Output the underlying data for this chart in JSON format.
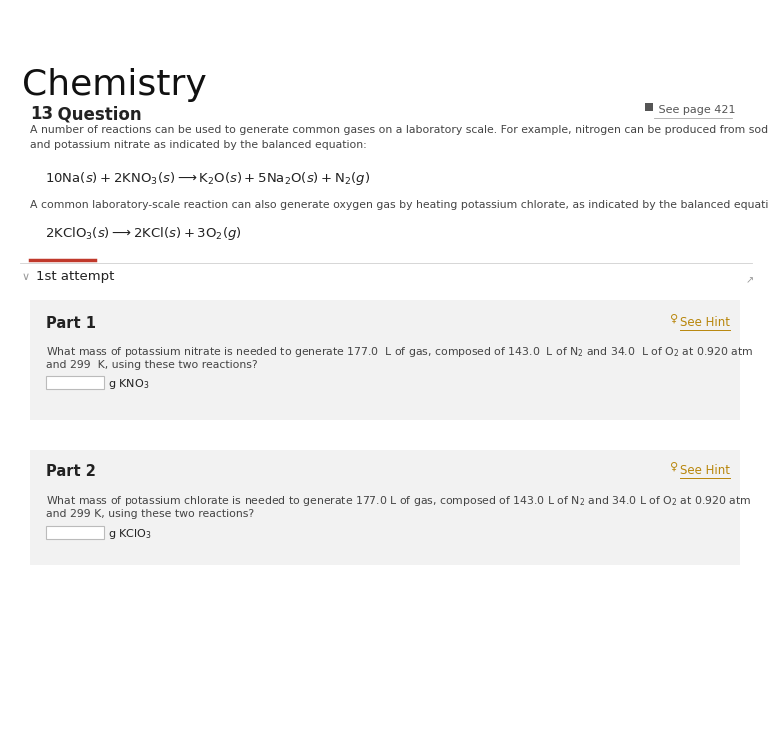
{
  "bg_color": "#ffffff",
  "title": "Chemistry",
  "question_num": "13",
  "question_label": "  Question",
  "question_dots": "...",
  "see_page": " See page 421",
  "para1_line1": "A number of reactions can be used to generate common gases on a laboratory scale. For example, nitrogen can be produced from sodium metal",
  "para1_line2": "and potassium nitrate as indicated by the balanced equation:",
  "eq1": "$10\\mathrm{Na}(s) + 2\\mathrm{KNO}_3(s) \\longrightarrow \\mathrm{K}_2\\mathrm{O}(s) + 5\\mathrm{Na}_2\\mathrm{O}(s) + \\mathrm{N}_2(g)$",
  "para2": "A common laboratory-scale reaction can also generate oxygen gas by heating potassium chlorate, as indicated by the balanced equation:",
  "eq2": "$2\\mathrm{KClO}_3(s) \\longrightarrow 2\\mathrm{KCl}(s) + 3\\mathrm{O}_2(g)$",
  "attempt_label": "1st attempt",
  "part1_label": "Part 1",
  "part1_hint": "See Hint",
  "part1_line1": "What mass of potassium nitrate is needed to generate 177.0  L of gas, composed of 143.0  L of N$_2$ and 34.0  L of O$_2$ at 0.920 atm",
  "part1_line2": "and 299  K, using these two reactions?",
  "part1_unit": "g KNO$_3$",
  "part2_label": "Part 2",
  "part2_hint": "See Hint",
  "part2_line1": "What mass of potassium chlorate is needed to generate 177.0 L of gas, composed of 143.0 L of N$_2$ and 34.0 L of O$_2$ at 0.920 atm",
  "part2_line2": "and 299 K, using these two reactions?",
  "part2_unit": "g KClO$_3$",
  "accent_color": "#c0392b",
  "hint_color": "#b8860b",
  "separator_color": "#d0d0d0",
  "part_bg_color": "#f2f2f2",
  "text_color": "#222222",
  "small_text_color": "#444444",
  "gray_text": "#888888"
}
